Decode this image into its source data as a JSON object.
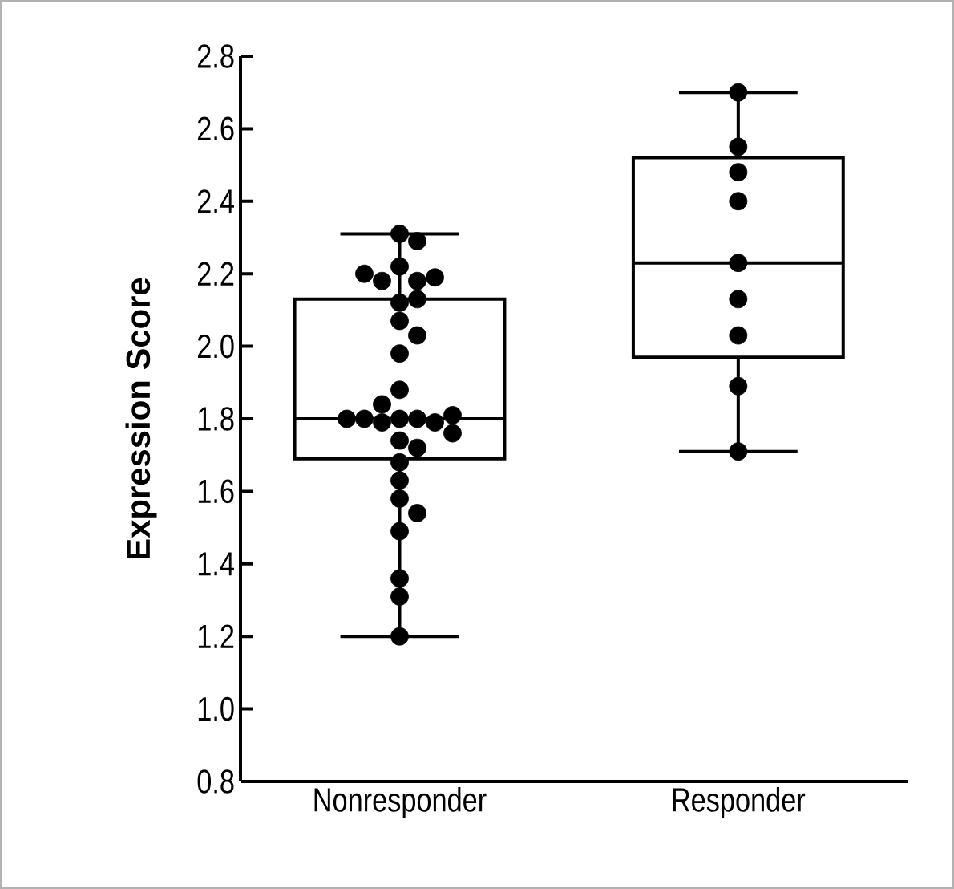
{
  "chart_data": {
    "type": "box",
    "ylabel": "Expression Score",
    "categories": [
      "Nonresponder",
      "Responder"
    ],
    "ylim": [
      0.8,
      2.8
    ],
    "yticks": [
      0.8,
      {
        "value": 1.0,
        "label": "1.0"
      },
      1.2,
      1.4,
      1.6,
      1.8,
      {
        "value": 2.0,
        "label": "2.0"
      },
      2.2,
      2.4,
      2.6,
      2.8
    ],
    "grid": false,
    "boxes": [
      {
        "low": 1.2,
        "q1": 1.69,
        "median": 1.8,
        "q3": 2.13,
        "high": 2.31
      },
      {
        "low": 1.71,
        "q1": 1.97,
        "median": 2.23,
        "q3": 2.52,
        "high": 2.7
      }
    ],
    "series": [
      {
        "type": "scatter",
        "color": "#000000",
        "marker": "circle",
        "x": [
          "Nonresponder",
          "Nonresponder",
          "Nonresponder",
          "Nonresponder",
          "Nonresponder",
          "Nonresponder",
          "Nonresponder",
          "Nonresponder",
          "Nonresponder",
          "Nonresponder",
          "Nonresponder",
          "Nonresponder",
          "Nonresponder",
          "Nonresponder",
          "Nonresponder",
          "Nonresponder",
          "Nonresponder",
          "Nonresponder",
          "Nonresponder",
          "Nonresponder",
          "Nonresponder",
          "Nonresponder",
          "Nonresponder",
          "Nonresponder",
          "Nonresponder",
          "Nonresponder",
          "Nonresponder",
          "Nonresponder",
          "Nonresponder",
          "Nonresponder",
          "Nonresponder",
          "Nonresponder",
          "Responder",
          "Responder",
          "Responder",
          "Responder",
          "Responder",
          "Responder",
          "Responder",
          "Responder",
          "Responder"
        ],
        "values": [
          2.31,
          2.29,
          2.22,
          2.18,
          2.18,
          2.19,
          2.2,
          2.12,
          2.13,
          2.07,
          2.03,
          1.98,
          1.88,
          1.8,
          1.8,
          1.79,
          1.84,
          1.79,
          1.8,
          1.81,
          1.76,
          1.74,
          1.72,
          1.68,
          1.63,
          1.58,
          1.54,
          1.49,
          1.36,
          1.31,
          1.2,
          1.8,
          2.7,
          2.55,
          2.48,
          2.4,
          2.23,
          2.13,
          2.03,
          1.89,
          1.71
        ]
      }
    ]
  }
}
